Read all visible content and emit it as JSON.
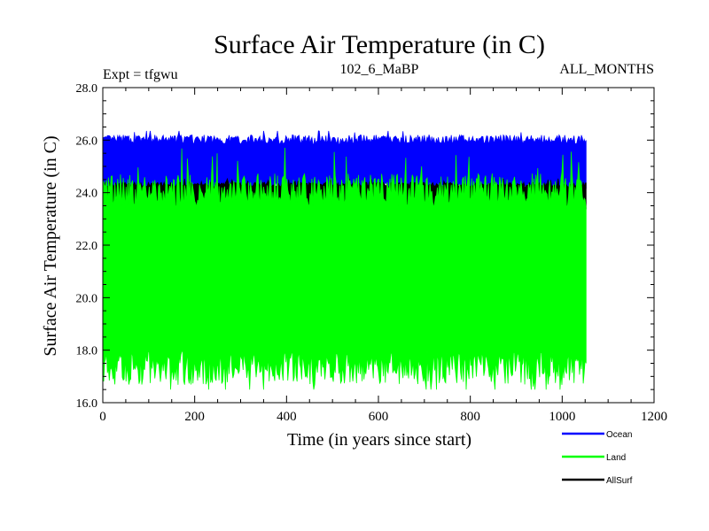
{
  "chart_data": {
    "type": "area",
    "title": "Surface Air Temperature (in C)",
    "subtitle_left": "Expt = tfgwu",
    "subtitle_center": "102_6_MaBP",
    "subtitle_right": "ALL_MONTHS",
    "xlabel": "Time (in years since start)",
    "ylabel": "Surface Air Temperature (in C)",
    "xlim": [
      0,
      1200
    ],
    "ylim": [
      16.0,
      28.0
    ],
    "x_ticks": [
      0,
      200,
      400,
      600,
      800,
      1000,
      1200
    ],
    "x_tick_labels": [
      "0",
      "200",
      "400",
      "600",
      "800",
      "1000",
      "1200"
    ],
    "y_ticks": [
      16.0,
      18.0,
      20.0,
      22.0,
      24.0,
      26.0,
      28.0
    ],
    "y_tick_labels": [
      "16.0",
      "18.0",
      "20.0",
      "22.0",
      "24.0",
      "26.0",
      "28.0"
    ],
    "x_range_of_data": [
      0,
      1052
    ],
    "series": [
      {
        "name": "Ocean",
        "color": "#0000ff",
        "band_low": 24.2,
        "band_high": 26.0,
        "max_peak": 26.35
      },
      {
        "name": "AllSurf",
        "color": "#000000",
        "band_low": 23.4,
        "band_high": 24.3,
        "max_peak": 24.6
      },
      {
        "name": "Land",
        "color": "#00ff00",
        "band_low": 17.4,
        "band_high": 24.0,
        "min_trough": 16.5
      }
    ]
  }
}
